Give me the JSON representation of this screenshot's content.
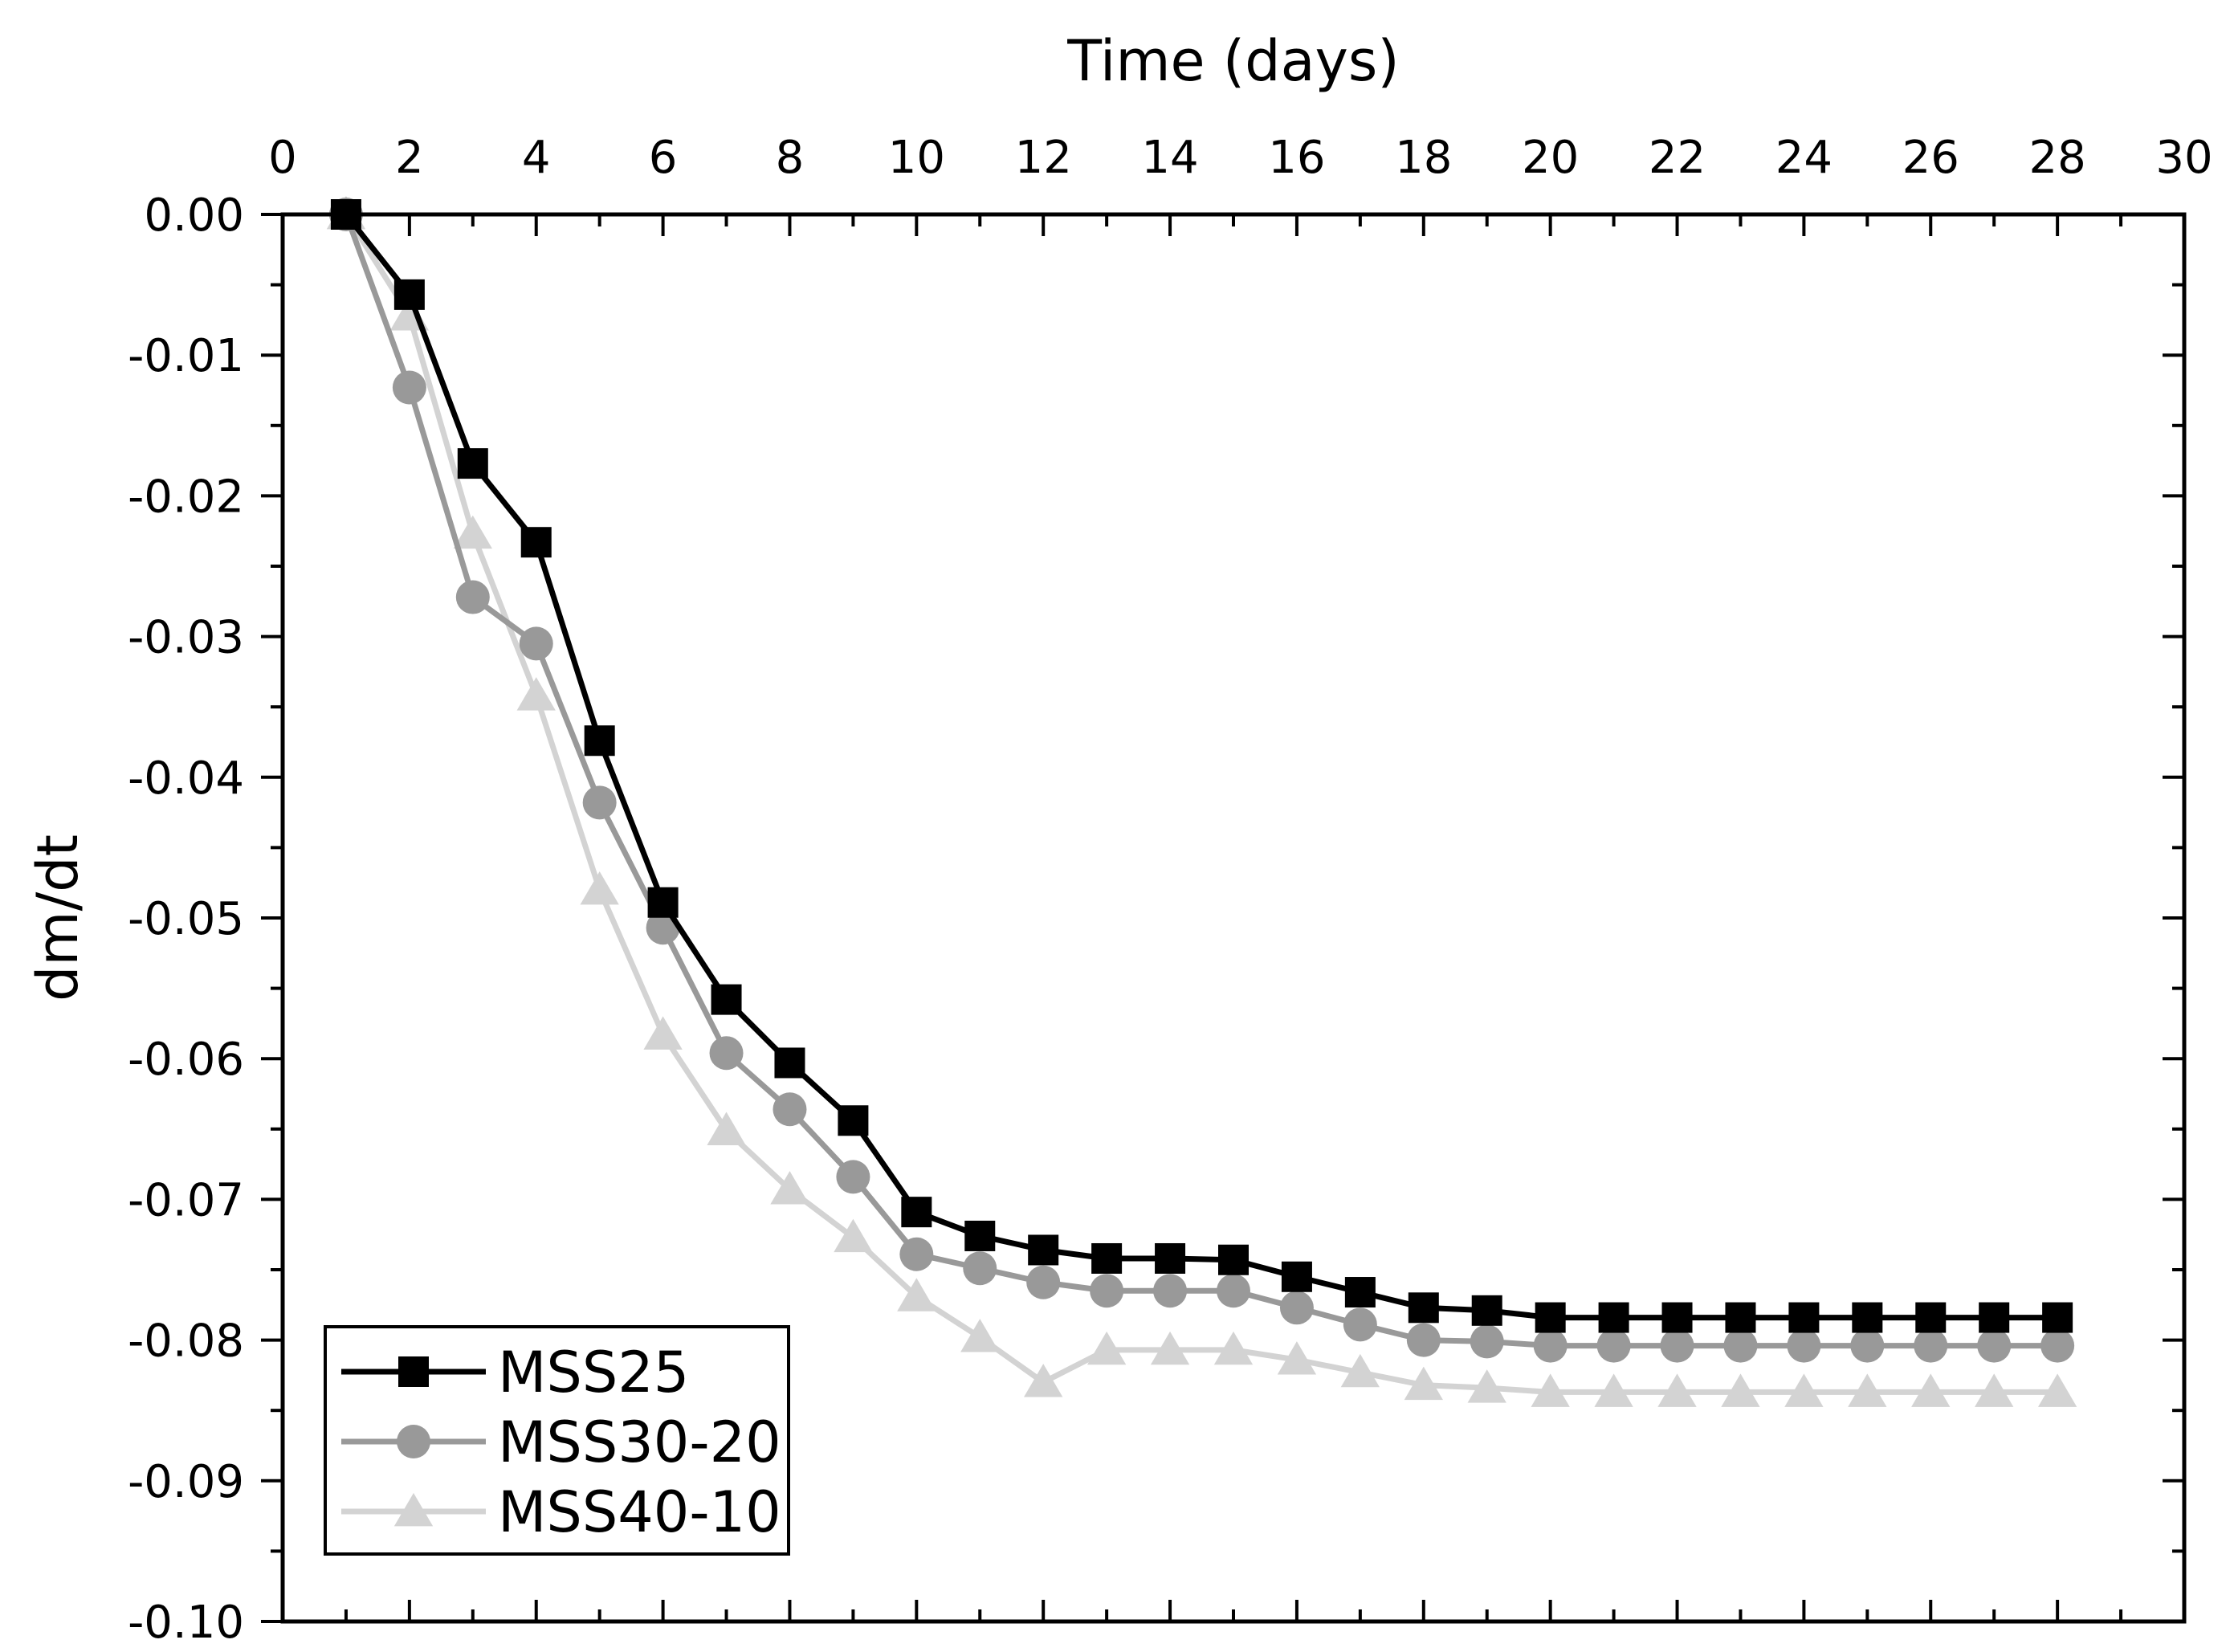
{
  "chart_data": {
    "type": "line",
    "xlabel": "Time (days)",
    "ylabel": "dm/dt",
    "xlim": [
      0,
      30
    ],
    "ylim": [
      -0.1,
      0.0
    ],
    "x_tick_step": 2,
    "y_tick_step": 0.01,
    "x_tick_labels": [
      "0",
      "2",
      "4",
      "6",
      "8",
      "10",
      "12",
      "14",
      "16",
      "18",
      "20",
      "22",
      "24",
      "26",
      "28",
      "30"
    ],
    "y_tick_labels": [
      "0.00",
      "-0.01",
      "-0.02",
      "-0.03",
      "-0.04",
      "-0.05",
      "-0.06",
      "-0.07",
      "-0.08",
      "-0.09",
      "-0.10"
    ],
    "x_axis_position": "top",
    "legend_position": "bottom-left",
    "x": [
      1,
      2,
      3,
      4,
      5,
      6,
      7,
      8,
      9,
      10,
      11,
      12,
      13,
      14,
      15,
      16,
      17,
      18,
      19,
      20,
      21,
      22,
      23,
      24,
      25,
      26,
      27,
      28
    ],
    "series": [
      {
        "name": "MSS25",
        "color": "#000000",
        "marker": "square",
        "values": [
          0.0,
          -0.0057,
          -0.0177,
          -0.0233,
          -0.0374,
          -0.0489,
          -0.0558,
          -0.0603,
          -0.0644,
          -0.0709,
          -0.0726,
          -0.0736,
          -0.0742,
          -0.0742,
          -0.0743,
          -0.0755,
          -0.0766,
          -0.0777,
          -0.0779,
          -0.0784,
          -0.0784,
          -0.0784,
          -0.0784,
          -0.0784,
          -0.0784,
          -0.0784,
          -0.0784,
          -0.0784
        ]
      },
      {
        "name": "MSS30-20",
        "color": "#999999",
        "marker": "circle",
        "values": [
          0.0,
          -0.0123,
          -0.0272,
          -0.0305,
          -0.0418,
          -0.0507,
          -0.0596,
          -0.0636,
          -0.0684,
          -0.0739,
          -0.0749,
          -0.0759,
          -0.0765,
          -0.0765,
          -0.0765,
          -0.0777,
          -0.0789,
          -0.08,
          -0.0801,
          -0.0804,
          -0.0804,
          -0.0804,
          -0.0804,
          -0.0804,
          -0.0804,
          -0.0804,
          -0.0804,
          -0.0804
        ]
      },
      {
        "name": "MSS40-10",
        "color": "#d3d3d3",
        "marker": "triangle",
        "values": [
          0.0,
          -0.0072,
          -0.0227,
          -0.0342,
          -0.048,
          -0.0583,
          -0.0651,
          -0.0693,
          -0.0727,
          -0.0769,
          -0.0798,
          -0.083,
          -0.0807,
          -0.0807,
          -0.0807,
          -0.0814,
          -0.0823,
          -0.0832,
          -0.0834,
          -0.0837,
          -0.0837,
          -0.0837,
          -0.0837,
          -0.0837,
          -0.0837,
          -0.0837,
          -0.0837,
          -0.0837
        ]
      }
    ]
  }
}
